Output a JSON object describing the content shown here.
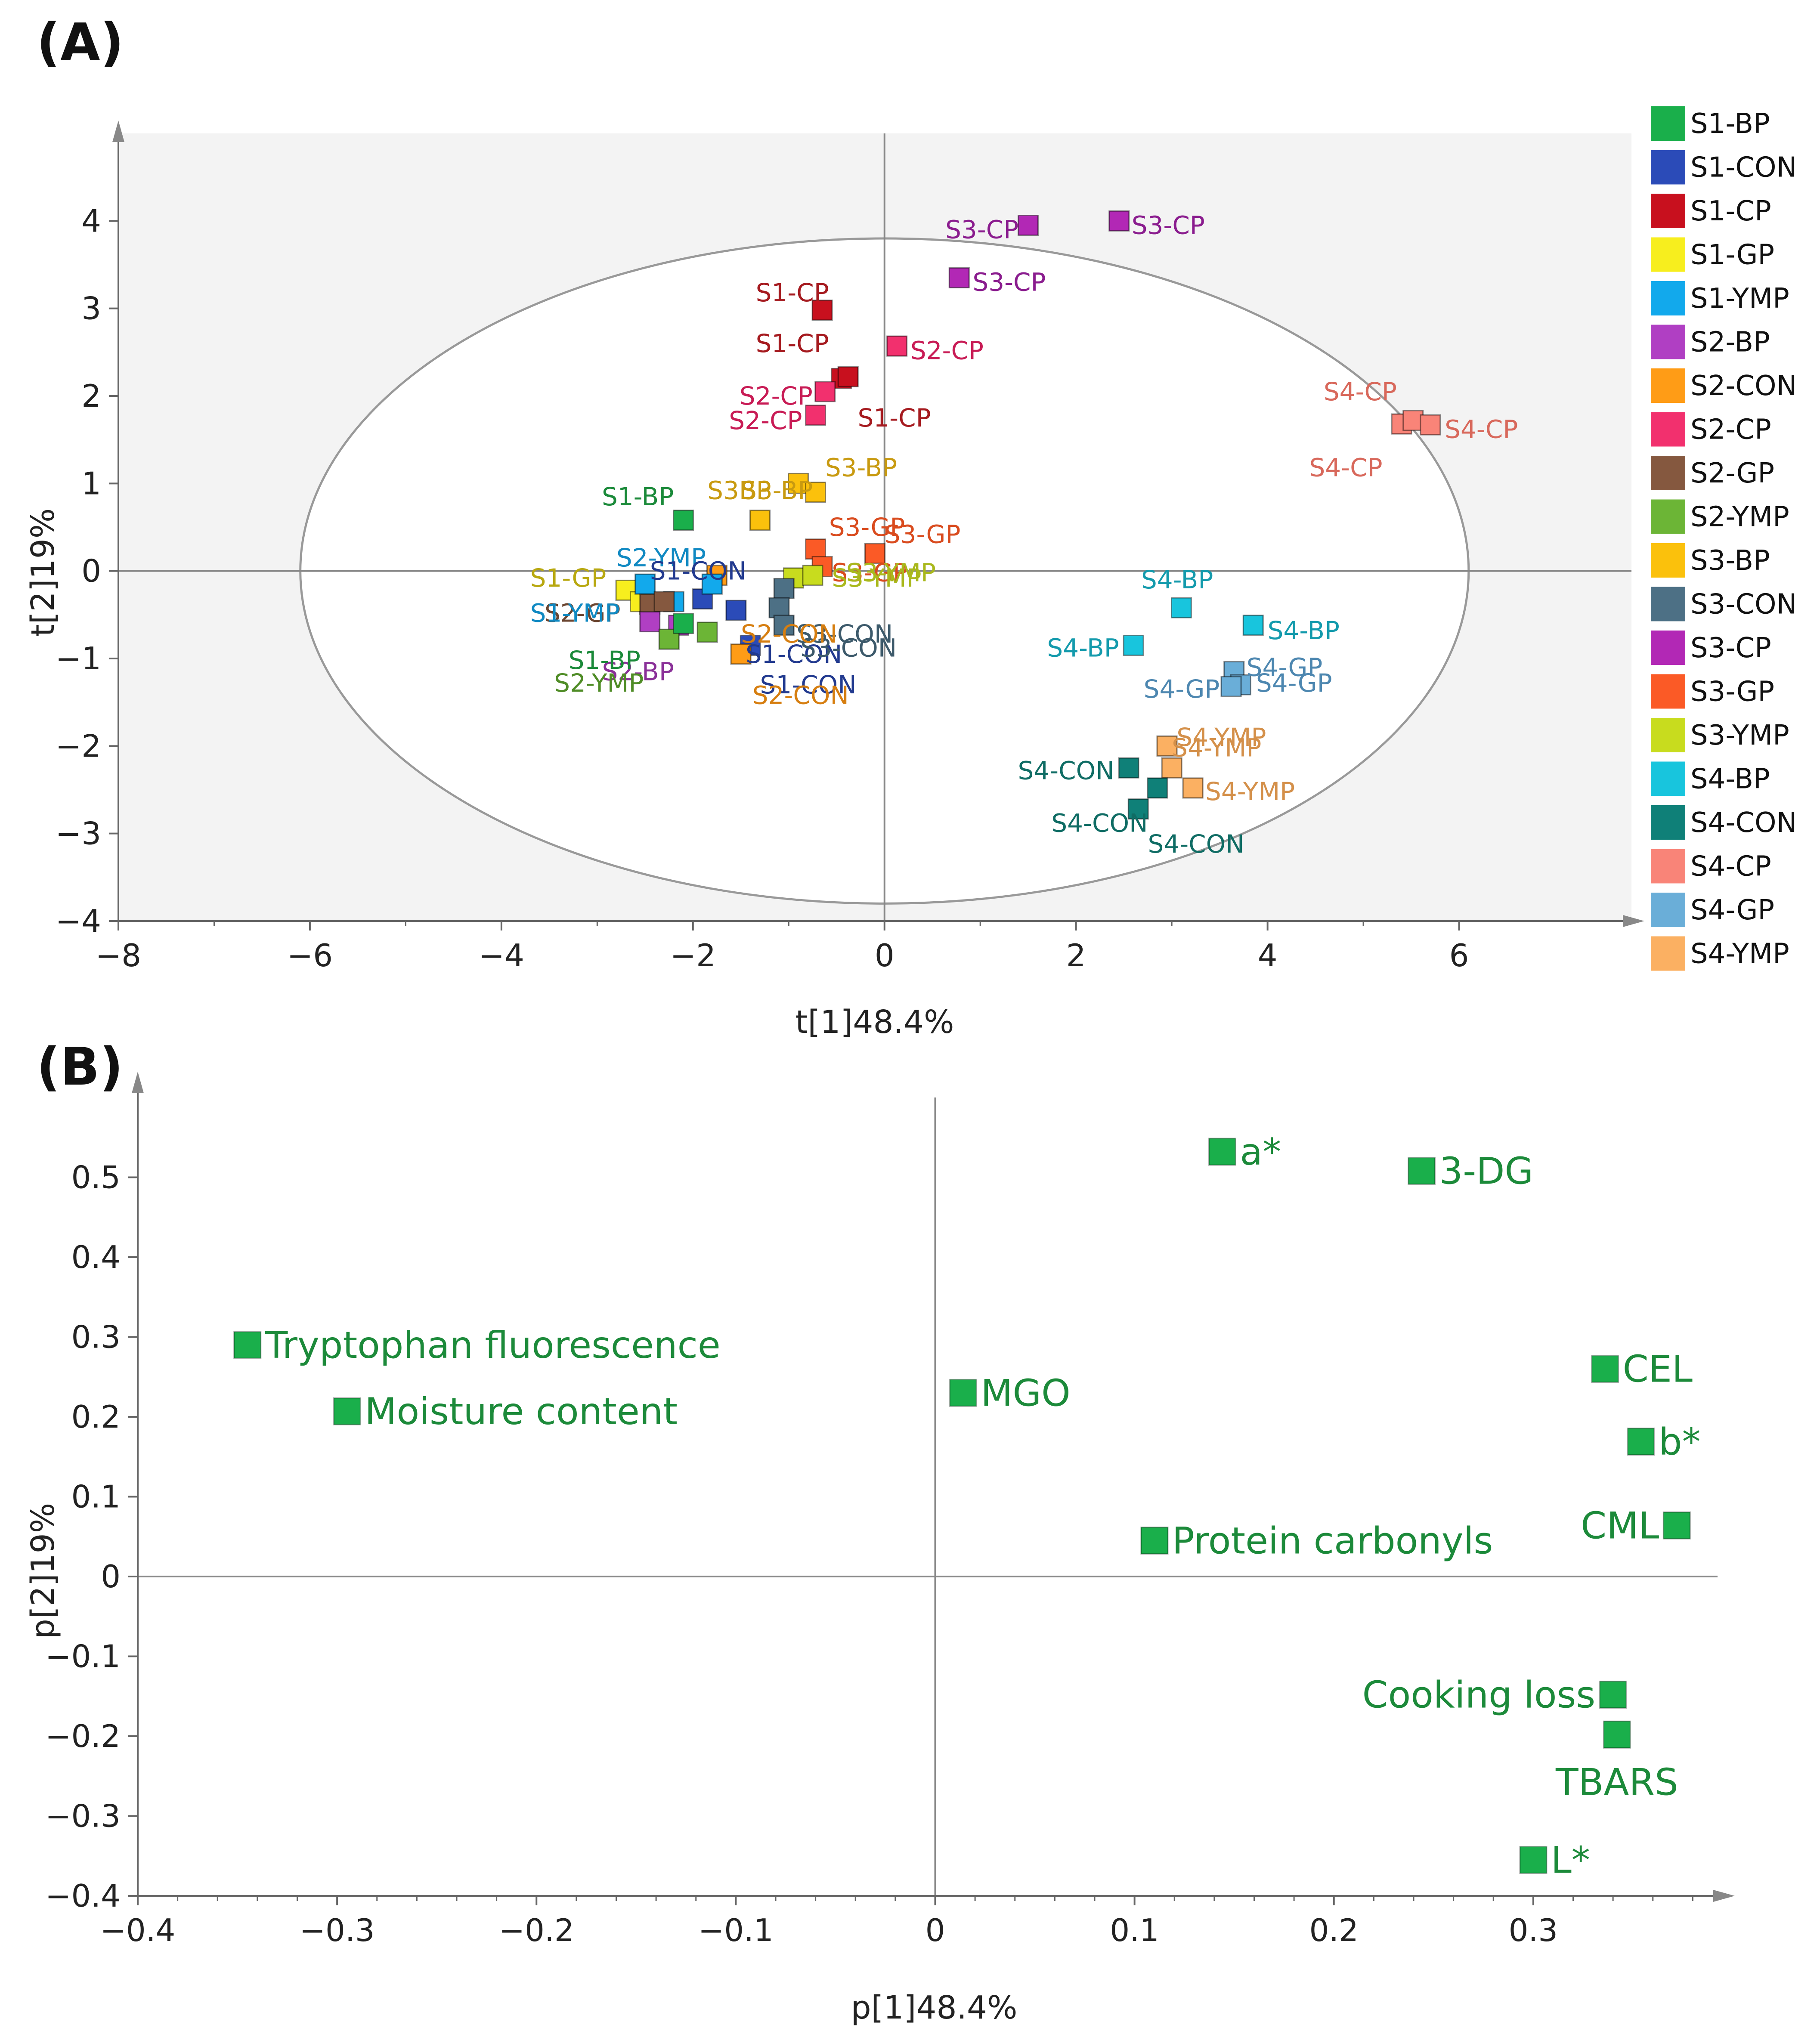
{
  "chart_data": [
    {
      "panel": "(A)",
      "type": "scatter",
      "title": "",
      "xlabel": "t[1]48.4%",
      "ylabel": "t[2]19%",
      "xlim": [
        -8,
        7.8
      ],
      "ylim": [
        -4,
        5
      ],
      "xticks": [
        "−8",
        "−6",
        "−4",
        "−2",
        "0",
        "2",
        "4",
        "6"
      ],
      "xtick_values": [
        -8,
        -6,
        -4,
        -2,
        0,
        2,
        4,
        6
      ],
      "yticks": [
        "−4",
        "−3",
        "−2",
        "−1",
        "0",
        "1",
        "2",
        "3",
        "4"
      ],
      "ytick_values": [
        -4,
        -3,
        -2,
        -1,
        0,
        1,
        2,
        3,
        4
      ],
      "ellipse": {
        "center": [
          0,
          0
        ],
        "rx": 6.1,
        "ry": 3.8
      },
      "legend_position": "right",
      "legend": [
        {
          "name": "S1-BP",
          "color": "#1aaf4b"
        },
        {
          "name": "S1-CON",
          "color": "#2b4bb8"
        },
        {
          "name": "S1-CP",
          "color": "#c8101e"
        },
        {
          "name": "S1-GP",
          "color": "#f7ee1e"
        },
        {
          "name": "S1-YMP",
          "color": "#12a9ec"
        },
        {
          "name": "S2-BP",
          "color": "#b03fc3"
        },
        {
          "name": "S2-CON",
          "color": "#ff9c16"
        },
        {
          "name": "S2-CP",
          "color": "#f2306e"
        },
        {
          "name": "S2-GP",
          "color": "#85583f"
        },
        {
          "name": "S2-YMP",
          "color": "#6cb536"
        },
        {
          "name": "S3-BP",
          "color": "#fbc10c"
        },
        {
          "name": "S3-CON",
          "color": "#4d7085"
        },
        {
          "name": "S3-CP",
          "color": "#b228b5"
        },
        {
          "name": "S3-GP",
          "color": "#fb5a26"
        },
        {
          "name": "S3-YMP",
          "color": "#c8dc1e"
        },
        {
          "name": "S4-BP",
          "color": "#18c5dd"
        },
        {
          "name": "S4-CON",
          "color": "#0f8078"
        },
        {
          "name": "S4-CP",
          "color": "#f98478"
        },
        {
          "name": "S4-GP",
          "color": "#6aaed8"
        },
        {
          "name": "S4-YMP",
          "color": "#fbb062"
        }
      ],
      "points": [
        {
          "group": "S3-CP",
          "x": 1.5,
          "y": 3.95
        },
        {
          "group": "S3-CP",
          "x": 2.45,
          "y": 4.0
        },
        {
          "group": "S3-CP",
          "x": 0.78,
          "y": 3.35
        },
        {
          "group": "S1-CP",
          "x": -0.65,
          "y": 2.98
        },
        {
          "group": "S1-CP",
          "x": -0.45,
          "y": 2.2
        },
        {
          "group": "S1-CP",
          "x": -0.38,
          "y": 2.22
        },
        {
          "group": "S2-CP",
          "x": 0.13,
          "y": 2.57
        },
        {
          "group": "S2-CP",
          "x": -0.62,
          "y": 2.05
        },
        {
          "group": "S2-CP",
          "x": -0.72,
          "y": 1.78
        },
        {
          "group": "S4-CP",
          "x": 5.4,
          "y": 1.68
        },
        {
          "group": "S4-CP",
          "x": 5.52,
          "y": 1.72
        },
        {
          "group": "S4-CP",
          "x": 5.7,
          "y": 1.67
        },
        {
          "group": "S1-BP",
          "x": -2.1,
          "y": 0.58
        },
        {
          "group": "S3-BP",
          "x": -0.9,
          "y": 1.0
        },
        {
          "group": "S3-BP",
          "x": -0.72,
          "y": 0.9
        },
        {
          "group": "S3-BP",
          "x": -1.3,
          "y": 0.58
        },
        {
          "group": "S3-GP",
          "x": -0.72,
          "y": 0.25
        },
        {
          "group": "S3-GP",
          "x": -0.1,
          "y": 0.2
        },
        {
          "group": "S3-GP",
          "x": -0.65,
          "y": 0.05
        },
        {
          "group": "S3-YMP",
          "x": -0.95,
          "y": -0.08
        },
        {
          "group": "S3-YMP",
          "x": -0.75,
          "y": -0.05
        },
        {
          "group": "S4-BP",
          "x": 3.1,
          "y": -0.42
        },
        {
          "group": "S4-BP",
          "x": 3.85,
          "y": -0.62
        },
        {
          "group": "S4-BP",
          "x": 2.6,
          "y": -0.85
        },
        {
          "group": "S4-GP",
          "x": 3.65,
          "y": -1.15
        },
        {
          "group": "S4-GP",
          "x": 3.72,
          "y": -1.3
        },
        {
          "group": "S4-GP",
          "x": 3.62,
          "y": -1.32
        },
        {
          "group": "S4-YMP",
          "x": 2.95,
          "y": -2.0
        },
        {
          "group": "S4-YMP",
          "x": 3.0,
          "y": -2.25
        },
        {
          "group": "S4-YMP",
          "x": 3.22,
          "y": -2.48
        },
        {
          "group": "S4-CON",
          "x": 2.55,
          "y": -2.25
        },
        {
          "group": "S4-CON",
          "x": 2.85,
          "y": -2.48
        },
        {
          "group": "S4-CON",
          "x": 2.65,
          "y": -2.72
        },
        {
          "group": "S1-GP",
          "x": -2.7,
          "y": -0.22
        },
        {
          "group": "S1-GP",
          "x": -2.55,
          "y": -0.35
        },
        {
          "group": "S1-YMP",
          "x": -2.5,
          "y": -0.15
        },
        {
          "group": "S1-YMP",
          "x": -2.2,
          "y": -0.35
        },
        {
          "group": "S2-GP",
          "x": -2.45,
          "y": -0.38
        },
        {
          "group": "S2-GP",
          "x": -2.3,
          "y": -0.35
        },
        {
          "group": "S2-BP",
          "x": -2.45,
          "y": -0.58
        },
        {
          "group": "S2-BP",
          "x": -2.15,
          "y": -0.62
        },
        {
          "group": "S2-YMP",
          "x": -2.25,
          "y": -0.78
        },
        {
          "group": "S2-YMP",
          "x": -1.85,
          "y": -0.7
        },
        {
          "group": "S1-CON",
          "x": -1.9,
          "y": -0.32
        },
        {
          "group": "S1-CON",
          "x": -1.55,
          "y": -0.45
        },
        {
          "group": "S1-CON",
          "x": -1.4,
          "y": -0.85
        },
        {
          "group": "S1-BP",
          "x": -2.1,
          "y": -0.6
        },
        {
          "group": "S2-CON",
          "x": -1.5,
          "y": -0.95
        },
        {
          "group": "S2-CON",
          "x": -1.75,
          "y": -0.05
        },
        {
          "group": "S3-CON",
          "x": -1.05,
          "y": -0.2
        },
        {
          "group": "S3-CON",
          "x": -1.1,
          "y": -0.42
        },
        {
          "group": "S3-CON",
          "x": -1.05,
          "y": -0.62
        },
        {
          "group": "S1-YMP",
          "x": -1.8,
          "y": -0.15
        }
      ],
      "annotations": [
        {
          "text": "S3-CP",
          "x": 1.4,
          "y": 3.9,
          "anchor": "end",
          "color": "#8a1c8e"
        },
        {
          "text": "S3-CP",
          "x": 2.58,
          "y": 3.95,
          "anchor": "start",
          "color": "#8a1c8e"
        },
        {
          "text": "S3-CP",
          "x": 0.92,
          "y": 3.3,
          "anchor": "start",
          "color": "#8a1c8e"
        },
        {
          "text": "S1-CP",
          "x": -0.58,
          "y": 3.18,
          "anchor": "end",
          "color": "#a51a1f"
        },
        {
          "text": "S1-CP",
          "x": -0.58,
          "y": 2.6,
          "anchor": "end",
          "color": "#a51a1f"
        },
        {
          "text": "S1-CP",
          "x": -0.28,
          "y": 1.75,
          "anchor": "start",
          "color": "#a51a1f"
        },
        {
          "text": "S2-CP",
          "x": 0.27,
          "y": 2.52,
          "anchor": "start",
          "color": "#c81b55"
        },
        {
          "text": "S2-CP",
          "x": -0.75,
          "y": 2.0,
          "anchor": "end",
          "color": "#c81b55"
        },
        {
          "text": "S2-CP",
          "x": -0.86,
          "y": 1.72,
          "anchor": "end",
          "color": "#c81b55"
        },
        {
          "text": "S4-CP",
          "x": 5.35,
          "y": 2.05,
          "anchor": "end",
          "color": "#d8685b"
        },
        {
          "text": "S4-CP",
          "x": 5.85,
          "y": 1.62,
          "anchor": "start",
          "color": "#d8685b"
        },
        {
          "text": "S4-CP",
          "x": 5.2,
          "y": 1.18,
          "anchor": "end",
          "color": "#d8685b"
        },
        {
          "text": "S1-BP",
          "x": -2.2,
          "y": 0.85,
          "anchor": "end",
          "color": "#1b8a3a"
        },
        {
          "text": "S3-BP",
          "x": -0.62,
          "y": 1.18,
          "anchor": "start",
          "color": "#c89a10"
        },
        {
          "text": "S3BP",
          "x": -1.85,
          "y": 0.92,
          "anchor": "start",
          "color": "#c89a10"
        },
        {
          "text": "S3-BP",
          "x": -1.5,
          "y": 0.92,
          "anchor": "start",
          "color": "#c89a10"
        },
        {
          "text": "S3-GP",
          "x": -0.58,
          "y": 0.5,
          "anchor": "start",
          "color": "#d94b1e"
        },
        {
          "text": "S3-GP",
          "x": 0.0,
          "y": 0.42,
          "anchor": "start",
          "color": "#d94b1e"
        },
        {
          "text": "S3-GP",
          "x": -0.55,
          "y": -0.02,
          "anchor": "start",
          "color": "#d94b1e"
        },
        {
          "text": "S3-YMP",
          "x": -0.55,
          "y": -0.08,
          "anchor": "start",
          "color": "#a9b81c"
        },
        {
          "text": "S3-YMP",
          "x": -0.4,
          "y": -0.02,
          "anchor": "start",
          "color": "#a9b81c"
        },
        {
          "text": "S4-BP",
          "x": 2.68,
          "y": -0.1,
          "anchor": "start",
          "color": "#139aac"
        },
        {
          "text": "S4-BP",
          "x": 4.0,
          "y": -0.68,
          "anchor": "start",
          "color": "#139aac"
        },
        {
          "text": "S4-BP",
          "x": 2.45,
          "y": -0.88,
          "anchor": "end",
          "color": "#139aac"
        },
        {
          "text": "S4-GP",
          "x": 3.78,
          "y": -1.1,
          "anchor": "start",
          "color": "#4d87b0"
        },
        {
          "text": "S4-GP",
          "x": 3.88,
          "y": -1.28,
          "anchor": "start",
          "color": "#4d87b0"
        },
        {
          "text": "S4-GP",
          "x": 3.5,
          "y": -1.35,
          "anchor": "end",
          "color": "#4d87b0"
        },
        {
          "text": "S4-YMP",
          "x": 3.05,
          "y": -1.9,
          "anchor": "start",
          "color": "#d4904a"
        },
        {
          "text": "S4-YMP",
          "x": 3.0,
          "y": -2.02,
          "anchor": "start",
          "color": "#d4904a"
        },
        {
          "text": "S4-YMP",
          "x": 3.35,
          "y": -2.52,
          "anchor": "start",
          "color": "#d4904a"
        },
        {
          "text": "S4-CON",
          "x": 2.4,
          "y": -2.28,
          "anchor": "end",
          "color": "#0f6c64"
        },
        {
          "text": "S4-CON",
          "x": 2.75,
          "y": -2.88,
          "anchor": "end",
          "color": "#0f6c64"
        },
        {
          "text": "S4-CON",
          "x": 2.75,
          "y": -3.12,
          "anchor": "start",
          "color": "#0f6c64"
        },
        {
          "text": "S1-GP",
          "x": -3.7,
          "y": -0.08,
          "anchor": "start",
          "color": "#b8a810"
        },
        {
          "text": "S2-GP",
          "x": -3.55,
          "y": -0.48,
          "anchor": "start",
          "color": "#6b4530"
        },
        {
          "text": "S1-YMP",
          "x": -3.7,
          "y": -0.48,
          "anchor": "start",
          "color": "#1089c2"
        },
        {
          "text": "S2-YMP",
          "x": -2.8,
          "y": 0.15,
          "anchor": "start",
          "color": "#1089c2"
        },
        {
          "text": "S2-BP",
          "x": -2.95,
          "y": -1.15,
          "anchor": "start",
          "color": "#8a3098"
        },
        {
          "text": "S1-BP",
          "x": -3.3,
          "y": -1.02,
          "anchor": "start",
          "color": "#1b8a3a"
        },
        {
          "text": "S2-YMP",
          "x": -3.45,
          "y": -1.28,
          "anchor": "start",
          "color": "#4f8c26"
        },
        {
          "text": "S1-CON",
          "x": -2.45,
          "y": 0.0,
          "anchor": "start",
          "color": "#223a8f"
        },
        {
          "text": "S1-CON",
          "x": -1.45,
          "y": -0.95,
          "anchor": "start",
          "color": "#223a8f"
        },
        {
          "text": "S1-CON",
          "x": -1.3,
          "y": -1.3,
          "anchor": "start",
          "color": "#223a8f"
        },
        {
          "text": "S3-CON",
          "x": -0.92,
          "y": -0.72,
          "anchor": "start",
          "color": "#3d5a6b"
        },
        {
          "text": "S3-CON",
          "x": -0.88,
          "y": -0.88,
          "anchor": "start",
          "color": "#3d5a6b"
        },
        {
          "text": "S2-CON",
          "x": -1.38,
          "y": -1.42,
          "anchor": "start",
          "color": "#d67e10"
        },
        {
          "text": "S2-CON",
          "x": -1.5,
          "y": -0.72,
          "anchor": "start",
          "color": "#d67e10"
        }
      ]
    },
    {
      "panel": "(B)",
      "type": "scatter",
      "title": "",
      "xlabel": "p[1]48.4%",
      "ylabel": "p[2]19%",
      "xlim": [
        -0.4,
        0.4
      ],
      "ylim": [
        -0.4,
        0.6
      ],
      "xticks": [
        "−0.4",
        "−0.3",
        "−0.2",
        "−0.1",
        "0",
        "0.1",
        "0.2",
        "0.3"
      ],
      "xtick_values": [
        -0.4,
        -0.3,
        -0.2,
        -0.1,
        0,
        0.1,
        0.2,
        0.3
      ],
      "yticks": [
        "−0.4",
        "−0.3",
        "−0.2",
        "−0.1",
        "0",
        "0.1",
        "0.2",
        "0.3",
        "0.4",
        "0.5"
      ],
      "ytick_values": [
        -0.4,
        -0.3,
        -0.2,
        -0.1,
        0,
        0.1,
        0.2,
        0.3,
        0.4,
        0.5
      ],
      "marker_color": "#1aaf4b",
      "label_color": "#1c8a3a",
      "points": [
        {
          "label": "a*",
          "x": 0.144,
          "y": 0.532,
          "anchor": "start"
        },
        {
          "label": "3-DG",
          "x": 0.244,
          "y": 0.508,
          "anchor": "start"
        },
        {
          "label": "Tryptophan fluorescence",
          "x": -0.345,
          "y": 0.29,
          "anchor": "start"
        },
        {
          "label": "Moisture content",
          "x": -0.295,
          "y": 0.207,
          "anchor": "start"
        },
        {
          "label": "MGO",
          "x": 0.014,
          "y": 0.23,
          "anchor": "start"
        },
        {
          "label": "CEL",
          "x": 0.336,
          "y": 0.26,
          "anchor": "start"
        },
        {
          "label": "b*",
          "x": 0.354,
          "y": 0.169,
          "anchor": "start"
        },
        {
          "label": "CML",
          "x": 0.372,
          "y": 0.064,
          "anchor": "end"
        },
        {
          "label": "Protein carbonyls",
          "x": 0.11,
          "y": 0.045,
          "anchor": "start"
        },
        {
          "label": "Cooking loss",
          "x": 0.34,
          "y": -0.148,
          "anchor": "end"
        },
        {
          "label": "TBARS",
          "x": 0.342,
          "y": -0.198,
          "anchor": "below"
        },
        {
          "label": "L*",
          "x": 0.3,
          "y": -0.355,
          "anchor": "start"
        }
      ]
    }
  ]
}
